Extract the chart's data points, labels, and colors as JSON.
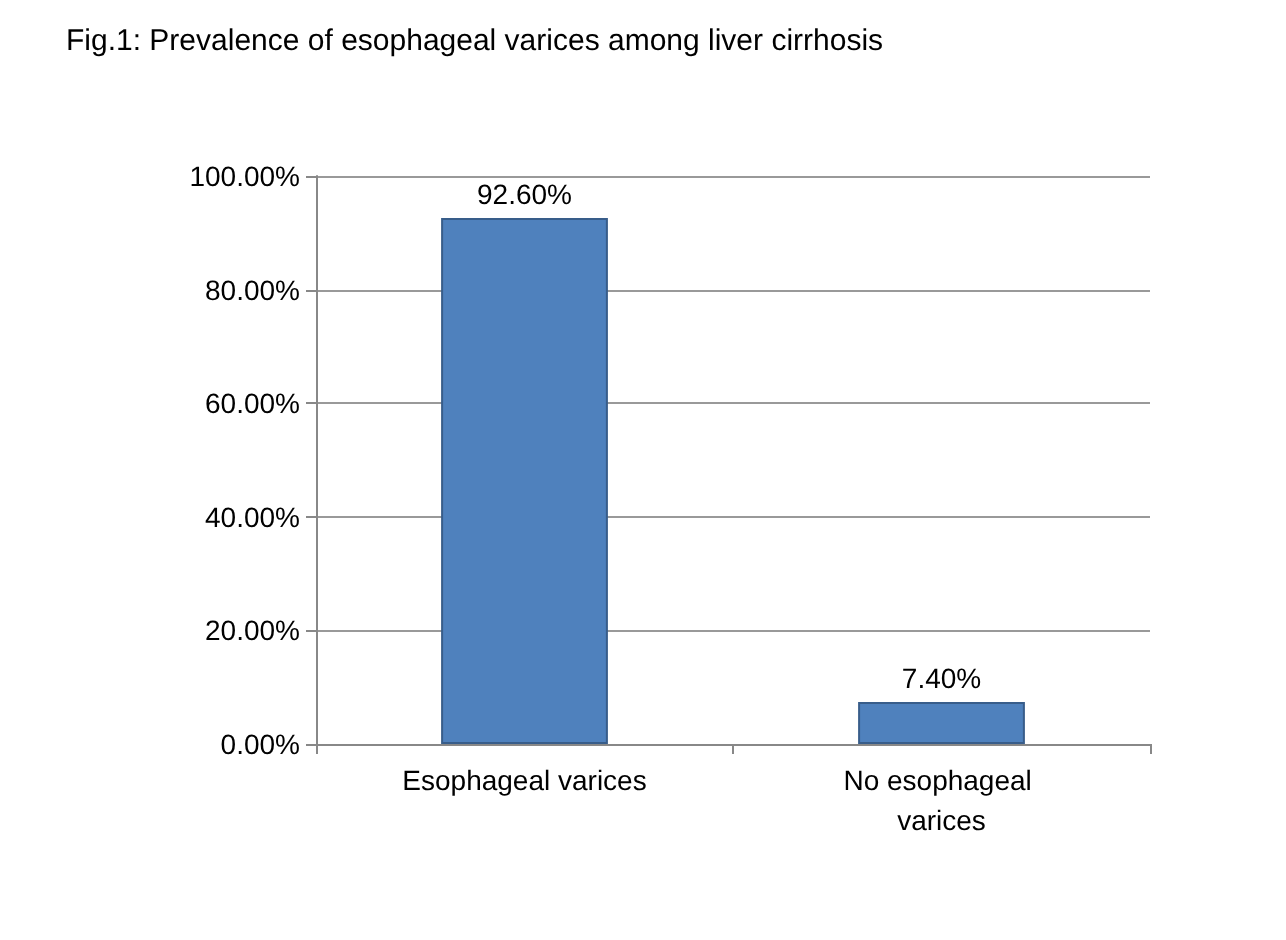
{
  "chart_data": {
    "type": "bar",
    "title": "Fig.1: Prevalence of esophageal varices among liver cirrhosis",
    "categories": [
      "Esophageal varices",
      "No esophageal varices"
    ],
    "values": [
      92.6,
      7.4
    ],
    "color": "#4f81bd",
    "value_labels": [
      "92.60%",
      "7.40%"
    ],
    "ylim": [
      0,
      100
    ],
    "yticks": [
      {
        "value": 0,
        "label": "0.00%"
      },
      {
        "value": 20,
        "label": "20.00%"
      },
      {
        "value": 40,
        "label": "40.00%"
      },
      {
        "value": 60,
        "label": "60.00%"
      },
      {
        "value": 80,
        "label": "80.00%"
      },
      {
        "value": 100,
        "label": "100.00%"
      }
    ],
    "grid": "y"
  }
}
